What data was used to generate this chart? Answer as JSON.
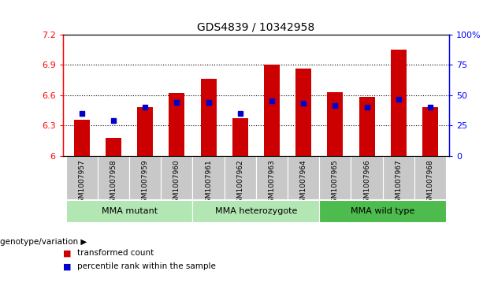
{
  "title": "GDS4839 / 10342958",
  "samples": [
    "GSM1007957",
    "GSM1007958",
    "GSM1007959",
    "GSM1007960",
    "GSM1007961",
    "GSM1007962",
    "GSM1007963",
    "GSM1007964",
    "GSM1007965",
    "GSM1007966",
    "GSM1007967",
    "GSM1007968"
  ],
  "red_values": [
    6.36,
    6.18,
    6.48,
    6.62,
    6.76,
    6.37,
    6.9,
    6.86,
    6.63,
    6.58,
    7.05,
    6.48
  ],
  "blue_values": [
    6.42,
    6.35,
    6.48,
    6.53,
    6.53,
    6.42,
    6.54,
    6.52,
    6.5,
    6.48,
    6.56,
    6.48
  ],
  "y_min": 6.0,
  "y_max": 7.2,
  "y_ticks": [
    6.0,
    6.3,
    6.6,
    6.9,
    7.2
  ],
  "y_tick_labels": [
    "6",
    "6.3",
    "6.6",
    "6.9",
    "7.2"
  ],
  "right_y_ticks": [
    0,
    25,
    50,
    75,
    100
  ],
  "right_y_tick_labels": [
    "0",
    "25",
    "50",
    "75",
    "100%"
  ],
  "groups": [
    {
      "label": "MMA mutant",
      "start": 0,
      "end": 4,
      "color": "#b2e6b2"
    },
    {
      "label": "MMA heterozygote",
      "start": 4,
      "end": 8,
      "color": "#b2e6b2"
    },
    {
      "label": "MMA wild type",
      "start": 8,
      "end": 12,
      "color": "#4dbb4d"
    }
  ],
  "red_color": "#CC0000",
  "blue_color": "#0000CC",
  "bar_width": 0.5,
  "blue_marker_size": 5,
  "legend_red": "transformed count",
  "legend_blue": "percentile rank within the sample",
  "genotype_label": "genotype/variation",
  "title_fontsize": 10,
  "sample_bg_color": "#c8c8c8",
  "sample_divider_color": "#ffffff"
}
